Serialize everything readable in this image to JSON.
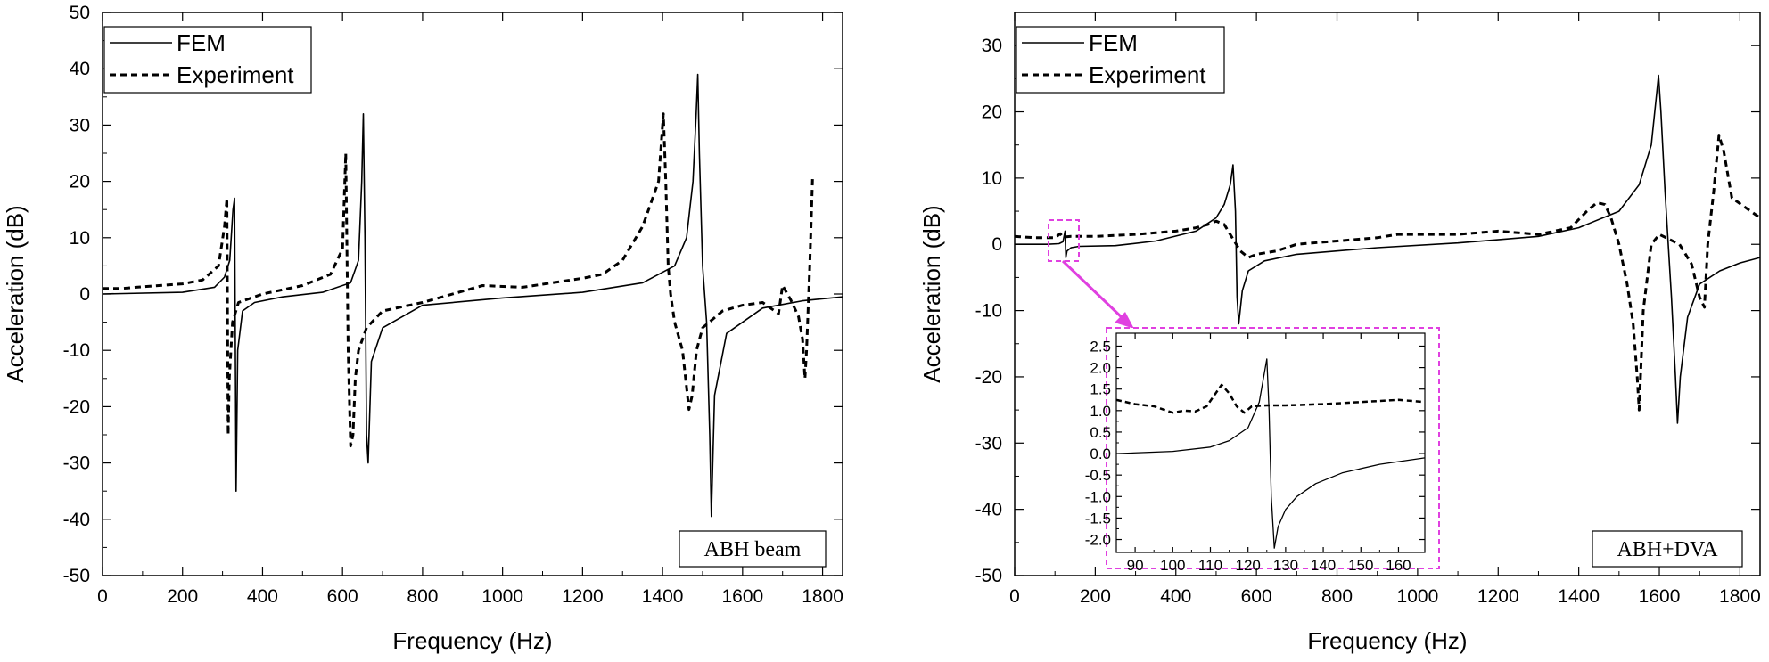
{
  "colors": {
    "line": "#000000",
    "callout": "#e040e0"
  },
  "chart_data": [
    {
      "type": "line",
      "xlabel": "Frequency (Hz)",
      "ylabel": "Acceleration (dB)",
      "xlim": [
        0,
        1850
      ],
      "ylim": [
        -50,
        50
      ],
      "xticks": [
        0,
        200,
        400,
        600,
        800,
        1000,
        1200,
        1400,
        1600,
        1800
      ],
      "yticks": [
        50,
        40,
        30,
        20,
        10,
        0,
        -10,
        -20,
        -30,
        -40,
        -50
      ],
      "legend": {
        "position": "top-left",
        "entries": [
          "FEM",
          "Experiment"
        ]
      },
      "annotation": "ABH beam",
      "series": [
        {
          "name": "FEM",
          "style": "solid",
          "x": [
            0,
            200,
            280,
            305,
            318,
            326,
            330,
            334,
            338,
            350,
            380,
            450,
            550,
            620,
            640,
            648,
            652,
            656,
            660,
            664,
            672,
            700,
            800,
            1000,
            1200,
            1350,
            1430,
            1460,
            1476,
            1484,
            1488,
            1492,
            1500,
            1510,
            1518,
            1522,
            1530,
            1560,
            1650,
            1750,
            1850
          ],
          "y": [
            0,
            0.3,
            1.2,
            3,
            6,
            15,
            17,
            -35,
            -10,
            -3,
            -1.5,
            -0.5,
            0.3,
            2,
            6,
            20,
            32,
            10,
            -25,
            -30,
            -12,
            -6,
            -2,
            -0.7,
            0.3,
            2,
            5,
            10,
            20,
            32,
            39,
            25,
            5,
            -5,
            -25,
            -39.5,
            -18,
            -7,
            -2.5,
            -1.2,
            -0.5
          ]
        },
        {
          "name": "Experiment",
          "style": "dashed",
          "x": [
            0,
            50,
            100,
            200,
            250,
            290,
            305,
            311,
            314,
            317,
            325,
            340,
            400,
            500,
            570,
            600,
            608,
            614,
            620,
            626,
            632,
            640,
            660,
            700,
            800,
            950,
            1050,
            1200,
            1250,
            1300,
            1350,
            1390,
            1402,
            1408,
            1414,
            1420,
            1430,
            1450,
            1466,
            1474,
            1485,
            1500,
            1550,
            1600,
            1650,
            1690,
            1700,
            1720,
            1740,
            1750,
            1756,
            1760,
            1768,
            1775
          ],
          "y": [
            1,
            1,
            1.3,
            1.8,
            2.5,
            5,
            12,
            17,
            -25,
            -15,
            -5,
            -1.5,
            0,
            1.5,
            3.5,
            8,
            25,
            -10,
            -27,
            -25,
            -15,
            -10,
            -6,
            -3,
            -1.5,
            1.5,
            1.2,
            2.8,
            3.5,
            6,
            12,
            20,
            32,
            20,
            5,
            0,
            -5,
            -10,
            -20.5,
            -18,
            -10,
            -6,
            -3,
            -2,
            -1.5,
            -3.5,
            1.5,
            -1,
            -4,
            -8,
            -15,
            -10,
            5,
            21
          ]
        }
      ]
    },
    {
      "type": "line",
      "xlabel": "Frequency (Hz)",
      "ylabel": "Acceleration (dB)",
      "xlim": [
        0,
        1850
      ],
      "ylim": [
        -50,
        35
      ],
      "xticks": [
        0,
        200,
        400,
        600,
        800,
        1000,
        1200,
        1400,
        1600,
        1800
      ],
      "yticks": [
        30,
        20,
        10,
        0,
        -10,
        -20,
        -30,
        -40,
        -50
      ],
      "legend": {
        "position": "top-left",
        "entries": [
          "FEM",
          "Experiment"
        ]
      },
      "annotation": "ABH+DVA",
      "series": [
        {
          "name": "FEM",
          "style": "solid",
          "x": [
            0,
            80,
            110,
            120,
            125,
            127,
            130,
            140,
            160,
            250,
            350,
            450,
            500,
            520,
            535,
            542,
            548,
            552,
            556,
            565,
            580,
            620,
            700,
            900,
            1100,
            1300,
            1400,
            1500,
            1550,
            1580,
            1592,
            1598,
            1604,
            1614,
            1630,
            1640,
            1645,
            1652,
            1670,
            1700,
            1750,
            1800,
            1850
          ],
          "y": [
            0,
            0,
            0.1,
            0.4,
            2,
            -2,
            -1,
            -0.5,
            -0.3,
            -0.2,
            0.5,
            2,
            4,
            6,
            9,
            12,
            5,
            -8,
            -12,
            -7,
            -4,
            -2.5,
            -1.5,
            -0.5,
            0.2,
            1.2,
            2.5,
            5,
            9,
            15,
            22,
            25.5,
            20,
            8,
            -8,
            -20,
            -27,
            -20,
            -11,
            -6,
            -4,
            -2.8,
            -2
          ]
        },
        {
          "name": "Experiment",
          "style": "dashed",
          "x": [
            0,
            50,
            100,
            113,
            120,
            140,
            200,
            300,
            400,
            450,
            480,
            500,
            520,
            540,
            560,
            580,
            600,
            650,
            700,
            800,
            900,
            950,
            1000,
            1100,
            1200,
            1300,
            1380,
            1420,
            1445,
            1465,
            1480,
            1500,
            1520,
            1535,
            1545,
            1550,
            1560,
            1580,
            1600,
            1650,
            1680,
            1700,
            1712,
            1720,
            1735,
            1748,
            1760,
            1780,
            1850
          ],
          "y": [
            1.2,
            1,
            1,
            1.6,
            1.1,
            1.2,
            1.2,
            1.5,
            2,
            2.5,
            3,
            3.5,
            3,
            1,
            -1,
            -2,
            -1.5,
            -1,
            0,
            0.5,
            1,
            1.5,
            1.5,
            1.5,
            2,
            1.5,
            2.5,
            5,
            6.3,
            6,
            4,
            0,
            -6,
            -12,
            -20,
            -25,
            -10,
            0,
            1.5,
            0,
            -3,
            -8,
            -9.5,
            0,
            8,
            16.5,
            14,
            7,
            4
          ]
        }
      ],
      "inset": {
        "xlim": [
          85,
          167
        ],
        "ylim": [
          -2.3,
          2.8
        ],
        "xticks": [
          90,
          100,
          110,
          120,
          130,
          140,
          150,
          160
        ],
        "yticks": [
          2.5,
          2.0,
          1.5,
          1.0,
          0.5,
          0.0,
          -0.5,
          -1.0,
          -1.5,
          -2.0
        ],
        "series": [
          {
            "name": "FEM",
            "style": "solid",
            "x": [
              85,
              100,
              110,
              115,
              120,
              123,
              125,
              125.6,
              126.2,
              127,
              128,
              130,
              133,
              138,
              145,
              155,
              167
            ],
            "y": [
              0,
              0.05,
              0.15,
              0.3,
              0.6,
              1.2,
              2.2,
              1.0,
              -1.0,
              -2.2,
              -1.7,
              -1.3,
              -1.0,
              -0.7,
              -0.45,
              -0.25,
              -0.1
            ]
          },
          {
            "name": "Experiment",
            "style": "dashed",
            "x": [
              85,
              90,
              95,
              100,
              103,
              106,
              109,
              111,
              113,
              115,
              117,
              119,
              121,
              125,
              130,
              140,
              150,
              160,
              167
            ],
            "y": [
              1.25,
              1.15,
              1.1,
              0.95,
              1.0,
              0.98,
              1.1,
              1.35,
              1.6,
              1.4,
              1.1,
              0.95,
              1.1,
              1.12,
              1.12,
              1.15,
              1.2,
              1.25,
              1.2
            ]
          }
        ]
      }
    }
  ]
}
